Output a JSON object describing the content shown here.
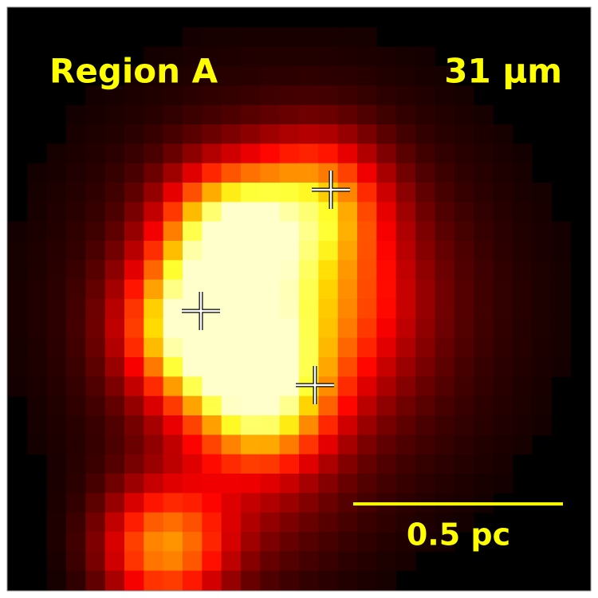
{
  "labels": {
    "region": "Region A",
    "wavelength": "31 µm"
  },
  "scale_bar": {
    "label": "0.5 pc"
  }
}
